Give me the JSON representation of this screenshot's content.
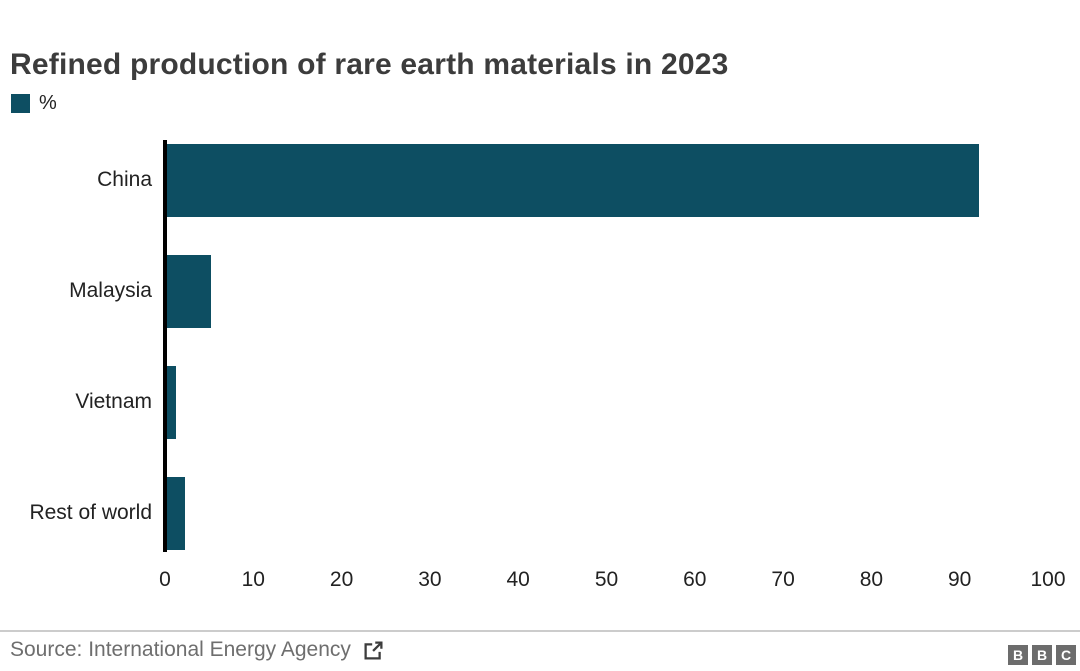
{
  "title": "Refined production of rare earth materials in 2023",
  "legend": {
    "label": "%",
    "swatch_color": "#0d4e62"
  },
  "chart_data": {
    "type": "bar",
    "orientation": "horizontal",
    "title": "Refined production of rare earth materials in 2023",
    "unit": "%",
    "legend_label": "%",
    "categories": [
      "China",
      "Malaysia",
      "Vietnam",
      "Rest of world"
    ],
    "values": [
      92,
      5,
      1,
      2
    ],
    "xlim": [
      0,
      100
    ],
    "xticks": [
      0,
      10,
      20,
      30,
      40,
      50,
      60,
      70,
      80,
      90,
      100
    ],
    "bar_color": "#0d4e62",
    "grid": false,
    "legend_position": "top-left"
  },
  "footer": {
    "source_text": "Source: International Energy Agency",
    "external_link_icon": "open-in-new",
    "logo_letters": [
      "B",
      "B",
      "C"
    ]
  },
  "colors": {
    "accent_teal": "#0d4e62",
    "title_text": "#3c3c3c",
    "axis_text": "#222222",
    "source_text": "#6e6e6e",
    "divider": "#cccccc",
    "logo_gray": "#6c6c6c"
  }
}
